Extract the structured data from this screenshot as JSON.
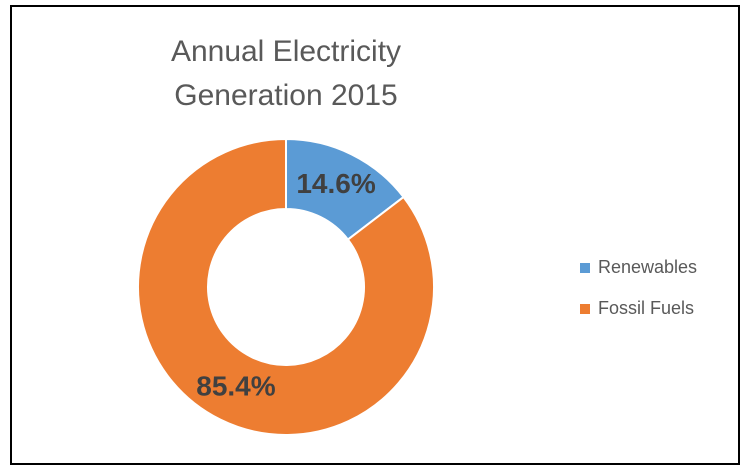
{
  "chart_data": {
    "type": "donut",
    "title": "Annual Electricity Generation 2015",
    "categories": [
      "Renewables",
      "Fossil Fuels"
    ],
    "values": [
      14.6,
      85.4
    ],
    "value_labels": [
      "14.6%",
      "85.4%"
    ],
    "colors": [
      "#5b9bd5",
      "#ed7d31"
    ],
    "legend": "right"
  }
}
